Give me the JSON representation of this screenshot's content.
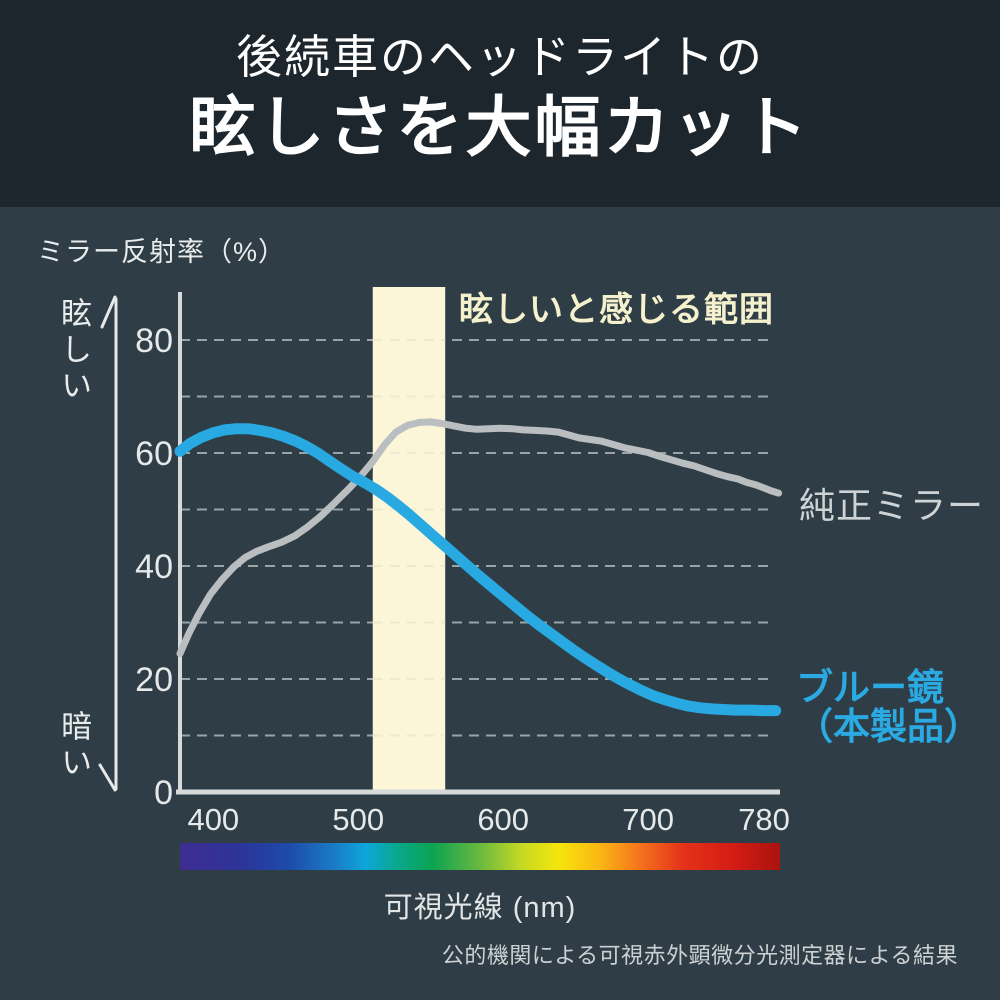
{
  "header": {
    "title_line1": "後続車のヘッドライトの",
    "title_line2": "眩しさを大幅カット"
  },
  "chart": {
    "y_axis_title": "ミラー反射率（%）",
    "y_axis_top_label": "眩しい",
    "y_axis_bottom_label": "暗い",
    "x_axis_label": "可視光線 (nm)",
    "band_label": "眩しいと感じる範囲",
    "footnote": "公的機関による可視赤外顕微分光測定器による結果"
  },
  "legend": {
    "gray_label": "純正ミラー",
    "blue_label_line1": "ブルー鏡",
    "blue_label_line2": "（本製品）"
  },
  "colors": {
    "header_bg": "#1d262c",
    "page_bg": "#2f3e46",
    "blue_line": "#29a9e1",
    "gray_line": "#babec0",
    "band_fill": "#faf6d7",
    "band_text": "#f5f1cd",
    "axis": "#d6dadb",
    "grid": "#9aa3a7",
    "tick_text": "#e5e9ea"
  },
  "chart_data": {
    "type": "line",
    "title": "後続車のヘッドライトの眩しさを大幅カット",
    "xlabel": "可視光線 (nm)",
    "ylabel": "ミラー反射率（%）",
    "xlim": [
      377,
      791
    ],
    "ylim": [
      0,
      88.5
    ],
    "x_ticks": [
      400,
      500,
      600,
      700,
      780
    ],
    "y_ticks": [
      0,
      20,
      40,
      60,
      80
    ],
    "grid": "dashed horizontal every 10",
    "grid_color": "#9aa3a7",
    "legend_position": "right of line ends",
    "band": {
      "label": "眩しいと感じる範囲",
      "x_from": 510,
      "x_to": 560,
      "color": "#faf6d7"
    },
    "series": [
      {
        "id": "stock-mirror",
        "name": "純正ミラー",
        "color": "#babec0",
        "width": 7,
        "points": [
          [
            377,
            24.5
          ],
          [
            383,
            28.0
          ],
          [
            390,
            31.5
          ],
          [
            398,
            35.0
          ],
          [
            406,
            37.6
          ],
          [
            414,
            39.8
          ],
          [
            422,
            41.5
          ],
          [
            430,
            42.6
          ],
          [
            438,
            43.4
          ],
          [
            447,
            44.2
          ],
          [
            456,
            45.3
          ],
          [
            465,
            46.9
          ],
          [
            474,
            48.8
          ],
          [
            483,
            51.0
          ],
          [
            492,
            53.3
          ],
          [
            501,
            55.7
          ],
          [
            510,
            58.5
          ],
          [
            518,
            61.4
          ],
          [
            526,
            63.7
          ],
          [
            534,
            64.9
          ],
          [
            542,
            65.4
          ],
          [
            550,
            65.5
          ],
          [
            558,
            65.2
          ],
          [
            566,
            64.8
          ],
          [
            574,
            64.4
          ],
          [
            582,
            64.2
          ],
          [
            590,
            64.3
          ],
          [
            598,
            64.4
          ],
          [
            606,
            64.3
          ],
          [
            614,
            64.1
          ],
          [
            622,
            64.0
          ],
          [
            630,
            63.9
          ],
          [
            638,
            63.7
          ],
          [
            645,
            63.2
          ],
          [
            652,
            62.7
          ],
          [
            660,
            62.4
          ],
          [
            668,
            62.1
          ],
          [
            676,
            61.5
          ],
          [
            684,
            60.9
          ],
          [
            692,
            60.5
          ],
          [
            700,
            60.1
          ],
          [
            708,
            59.4
          ],
          [
            716,
            58.8
          ],
          [
            724,
            58.2
          ],
          [
            732,
            57.7
          ],
          [
            740,
            57.0
          ],
          [
            748,
            56.3
          ],
          [
            755,
            55.8
          ],
          [
            762,
            55.4
          ],
          [
            768,
            54.8
          ],
          [
            774,
            54.4
          ],
          [
            780,
            53.8
          ],
          [
            785,
            53.3
          ],
          [
            790,
            52.9
          ]
        ]
      },
      {
        "id": "blue-mirror",
        "name": "ブルー鏡（本製品）",
        "color": "#29a9e1",
        "width": 11,
        "points": [
          [
            377,
            60.3
          ],
          [
            384,
            61.7
          ],
          [
            392,
            62.8
          ],
          [
            400,
            63.6
          ],
          [
            408,
            64.1
          ],
          [
            416,
            64.3
          ],
          [
            424,
            64.3
          ],
          [
            432,
            64.0
          ],
          [
            440,
            63.6
          ],
          [
            448,
            63.0
          ],
          [
            456,
            62.2
          ],
          [
            464,
            61.2
          ],
          [
            472,
            60.0
          ],
          [
            480,
            58.6
          ],
          [
            488,
            57.2
          ],
          [
            496,
            55.9
          ],
          [
            504,
            54.8
          ],
          [
            512,
            53.6
          ],
          [
            520,
            52.2
          ],
          [
            528,
            50.6
          ],
          [
            536,
            48.9
          ],
          [
            544,
            47.1
          ],
          [
            552,
            45.3
          ],
          [
            560,
            43.5
          ],
          [
            568,
            41.7
          ],
          [
            576,
            39.9
          ],
          [
            584,
            38.1
          ],
          [
            592,
            36.4
          ],
          [
            600,
            34.7
          ],
          [
            608,
            33.0
          ],
          [
            616,
            31.3
          ],
          [
            624,
            29.7
          ],
          [
            632,
            28.2
          ],
          [
            640,
            26.7
          ],
          [
            648,
            25.2
          ],
          [
            656,
            23.8
          ],
          [
            664,
            22.5
          ],
          [
            672,
            21.2
          ],
          [
            680,
            20.0
          ],
          [
            688,
            18.9
          ],
          [
            696,
            17.9
          ],
          [
            704,
            17.0
          ],
          [
            712,
            16.3
          ],
          [
            720,
            15.7
          ],
          [
            728,
            15.2
          ],
          [
            736,
            14.9
          ],
          [
            744,
            14.7
          ],
          [
            752,
            14.6
          ],
          [
            760,
            14.5
          ],
          [
            770,
            14.5
          ],
          [
            780,
            14.4
          ],
          [
            788,
            14.4
          ]
        ]
      }
    ],
    "spectrum_stops": [
      {
        "offset": "0%",
        "color": "#3f2d91"
      },
      {
        "offset": "10%",
        "color": "#2c3499"
      },
      {
        "offset": "18%",
        "color": "#1d4aa9"
      },
      {
        "offset": "26%",
        "color": "#1a7ec7"
      },
      {
        "offset": "31%",
        "color": "#0ca6db"
      },
      {
        "offset": "36%",
        "color": "#0aa88f"
      },
      {
        "offset": "42%",
        "color": "#0ba352"
      },
      {
        "offset": "50%",
        "color": "#6ab93f"
      },
      {
        "offset": "57%",
        "color": "#c5d923"
      },
      {
        "offset": "63%",
        "color": "#f5e60c"
      },
      {
        "offset": "70%",
        "color": "#fbb614"
      },
      {
        "offset": "77%",
        "color": "#f4701d"
      },
      {
        "offset": "84%",
        "color": "#e43119"
      },
      {
        "offset": "92%",
        "color": "#d51d15"
      },
      {
        "offset": "100%",
        "color": "#ab130e"
      }
    ]
  }
}
